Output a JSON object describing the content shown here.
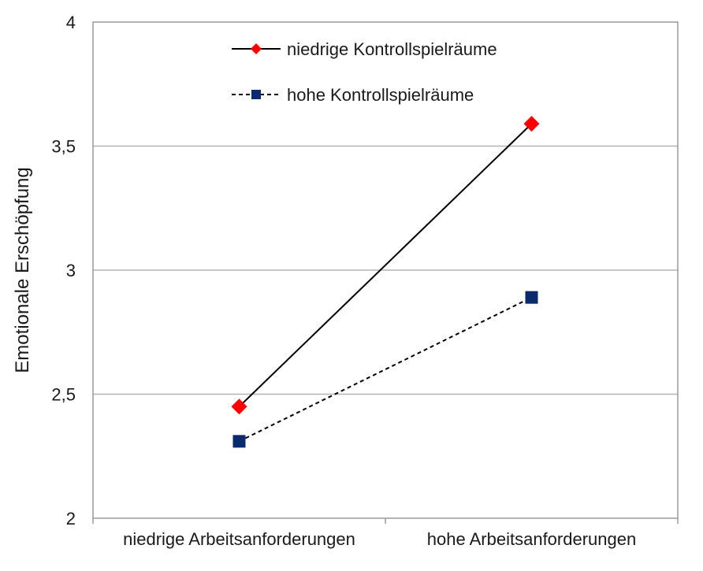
{
  "chart_data": {
    "type": "line",
    "title": "",
    "xlabel": "",
    "ylabel": "Emotionale Erschöpfung",
    "categories": [
      "niedrige Arbeitsanforderungen",
      "hohe Arbeitsanforderungen"
    ],
    "ylim": [
      2,
      4
    ],
    "yticks": [
      2,
      2.5,
      3,
      3.5,
      4
    ],
    "ytick_labels": [
      "2",
      "2,5",
      "3",
      "3,5",
      "4"
    ],
    "grid": "horizontal",
    "legend_position": "top",
    "series": [
      {
        "name": "niedrige Kontrollspielräume",
        "values": [
          2.45,
          3.59
        ],
        "color": "#ff0000",
        "line_color": "#000000",
        "line_style": "solid",
        "marker": "diamond"
      },
      {
        "name": "hohe Kontrollspielräume",
        "values": [
          2.31,
          2.89
        ],
        "color": "#0a2a6b",
        "line_color": "#000000",
        "line_style": "dashed",
        "marker": "square"
      }
    ]
  }
}
